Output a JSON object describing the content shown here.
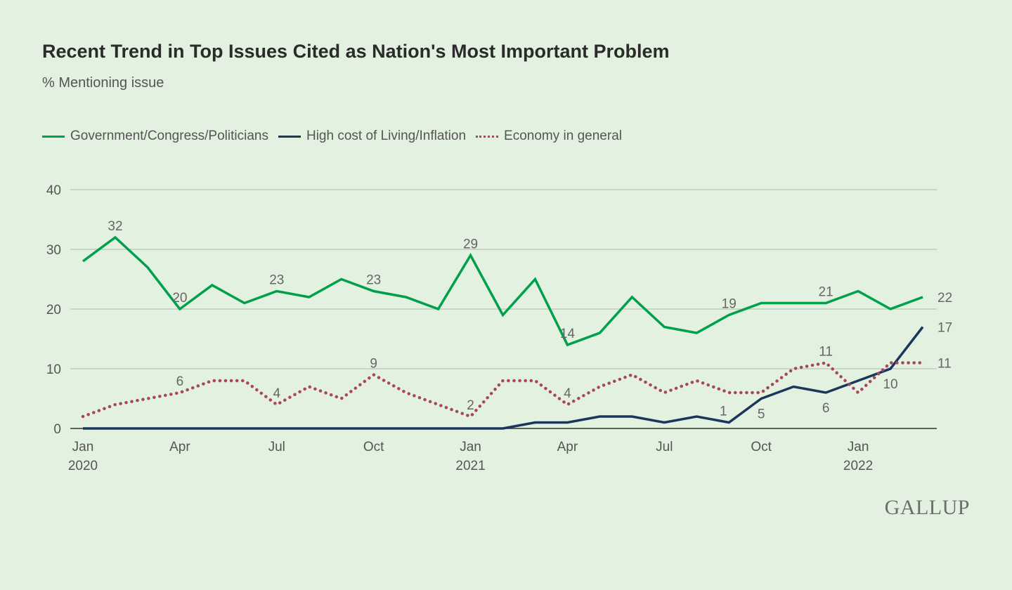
{
  "chart_data": {
    "type": "line",
    "title": "Recent Trend in Top Issues Cited as Nation's Most Important Problem",
    "subtitle": "% Mentioning issue",
    "ylim": [
      0,
      40
    ],
    "yticks": [
      0,
      10,
      20,
      30,
      40
    ],
    "grid": true,
    "legend_placement": "top-left",
    "x": [
      "Jan 2020",
      "Feb 2020",
      "Mar 2020",
      "Apr 2020",
      "May 2020",
      "Jun 2020",
      "Jul 2020",
      "Aug 2020",
      "Sep 2020",
      "Oct 2020",
      "Nov 2020",
      "Dec 2020",
      "Jan 2021",
      "Feb 2021",
      "Mar 2021",
      "Apr 2021",
      "May 2021",
      "Jun 2021",
      "Jul 2021",
      "Aug 2021",
      "Sep 2021",
      "Oct 2021",
      "Nov 2021",
      "Dec 2021",
      "Jan 2022",
      "Feb 2022",
      "Mar 2022"
    ],
    "xticks": [
      {
        "index": 0,
        "line1": "Jan",
        "line2": "2020"
      },
      {
        "index": 3,
        "line1": "Apr",
        "line2": ""
      },
      {
        "index": 6,
        "line1": "Jul",
        "line2": ""
      },
      {
        "index": 9,
        "line1": "Oct",
        "line2": ""
      },
      {
        "index": 12,
        "line1": "Jan",
        "line2": "2021"
      },
      {
        "index": 15,
        "line1": "Apr",
        "line2": ""
      },
      {
        "index": 18,
        "line1": "Jul",
        "line2": ""
      },
      {
        "index": 21,
        "line1": "Oct",
        "line2": ""
      },
      {
        "index": 24,
        "line1": "Jan",
        "line2": "2022"
      }
    ],
    "series": [
      {
        "name": "Government/Congress/Politicians",
        "color": "#00a04b",
        "style": "solid",
        "values": [
          28,
          32,
          27,
          20,
          24,
          21,
          23,
          22,
          25,
          23,
          22,
          20,
          29,
          19,
          25,
          14,
          16,
          22,
          17,
          16,
          19,
          21,
          21,
          21,
          23,
          20,
          22
        ],
        "labeled_indices": [
          1,
          3,
          6,
          9,
          12,
          15,
          20,
          23,
          26
        ]
      },
      {
        "name": "High cost of Living/Inflation",
        "color": "#1b365d",
        "style": "solid",
        "values": [
          0,
          0,
          0,
          0,
          0,
          0,
          0,
          0,
          0,
          0,
          0,
          0,
          0,
          0,
          1,
          1,
          2,
          2,
          1,
          2,
          1,
          5,
          7,
          6,
          8,
          10,
          17
        ],
        "labeled_indices": [
          20,
          21,
          23,
          25,
          26
        ]
      },
      {
        "name": "Economy in general",
        "color": "#a8475b",
        "style": "dotted",
        "values": [
          2,
          4,
          5,
          6,
          8,
          8,
          4,
          7,
          5,
          9,
          6,
          4,
          2,
          8,
          8,
          4,
          7,
          9,
          6,
          8,
          6,
          6,
          10,
          11,
          6,
          11,
          11
        ],
        "labeled_indices": [
          3,
          6,
          9,
          12,
          15,
          23,
          26
        ]
      }
    ]
  },
  "logo": "GALLUP"
}
